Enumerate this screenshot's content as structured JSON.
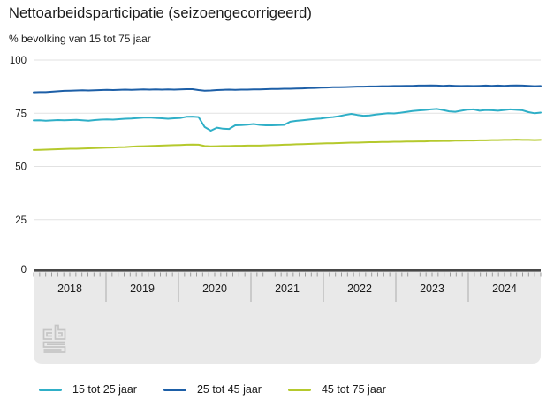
{
  "header": {
    "title": "Nettoarbeidsparticipatie (seizoengecorrigeerd)",
    "subtitle": "% bevolking van 15 tot 75 jaar"
  },
  "chart_data": {
    "type": "line",
    "title": "Nettoarbeidsparticipatie (seizoengecorrigeerd)",
    "ylabel": "% bevolking van 15 tot 75 jaar",
    "ylim": [
      0,
      100
    ],
    "yticks": [
      100,
      75,
      50,
      25,
      0
    ],
    "grid": true,
    "legend_position": "bottom",
    "x_resolution": "monthly",
    "year_labels": [
      "2018",
      "2019",
      "2020",
      "2021",
      "2022",
      "2023",
      "2024"
    ],
    "series": [
      {
        "name": "15 tot 25 jaar",
        "color": "#2fafc7",
        "values": [
          71.6,
          71.7,
          71.5,
          71.6,
          71.8,
          71.7,
          71.8,
          71.9,
          71.7,
          71.5,
          71.8,
          72.0,
          72.1,
          72.0,
          72.2,
          72.4,
          72.5,
          72.7,
          72.9,
          73.0,
          72.8,
          72.6,
          72.4,
          72.6,
          72.8,
          73.3,
          73.4,
          73.2,
          68.5,
          66.8,
          68.2,
          67.7,
          67.6,
          69.3,
          69.4,
          69.6,
          69.9,
          69.5,
          69.3,
          69.3,
          69.4,
          69.5,
          71.0,
          71.4,
          71.7,
          72.0,
          72.3,
          72.5,
          72.9,
          73.2,
          73.6,
          74.2,
          74.7,
          74.2,
          73.8,
          74.0,
          74.4,
          74.7,
          75.0,
          74.9,
          75.2,
          75.6,
          76.0,
          76.3,
          76.5,
          76.8,
          77.0,
          76.5,
          75.9,
          75.7,
          76.2,
          76.7,
          76.8,
          76.2,
          76.5,
          76.4,
          76.2,
          76.5,
          76.8,
          76.6,
          76.4,
          75.5,
          75.0,
          75.3
        ]
      },
      {
        "name": "25 tot 45 jaar",
        "color": "#1d5fa7",
        "values": [
          84.8,
          84.9,
          84.9,
          85.1,
          85.3,
          85.5,
          85.6,
          85.7,
          85.8,
          85.7,
          85.8,
          85.9,
          86.0,
          85.9,
          86.0,
          86.1,
          86.0,
          86.1,
          86.2,
          86.1,
          86.2,
          86.1,
          86.2,
          86.1,
          86.2,
          86.3,
          86.3,
          85.9,
          85.6,
          85.7,
          85.9,
          86.0,
          86.1,
          86.0,
          86.1,
          86.1,
          86.2,
          86.2,
          86.3,
          86.4,
          86.4,
          86.5,
          86.5,
          86.6,
          86.7,
          86.8,
          86.9,
          87.0,
          87.1,
          87.2,
          87.2,
          87.3,
          87.4,
          87.5,
          87.5,
          87.6,
          87.6,
          87.7,
          87.7,
          87.8,
          87.8,
          87.9,
          87.9,
          88.0,
          88.0,
          88.1,
          88.0,
          87.9,
          88.0,
          87.9,
          87.8,
          87.9,
          87.8,
          87.9,
          88.0,
          87.9,
          88.0,
          87.9,
          88.0,
          88.1,
          88.0,
          87.9,
          87.7,
          87.8
        ]
      },
      {
        "name": "45 tot 75 jaar",
        "color": "#b5c92d",
        "values": [
          57.7,
          57.8,
          57.9,
          58.0,
          58.1,
          58.2,
          58.3,
          58.3,
          58.4,
          58.5,
          58.6,
          58.7,
          58.8,
          58.9,
          59.0,
          59.1,
          59.3,
          59.4,
          59.5,
          59.6,
          59.7,
          59.8,
          59.9,
          60.0,
          60.1,
          60.2,
          60.3,
          60.2,
          59.6,
          59.4,
          59.5,
          59.6,
          59.6,
          59.7,
          59.7,
          59.8,
          59.8,
          59.8,
          59.9,
          60.0,
          60.1,
          60.2,
          60.3,
          60.4,
          60.5,
          60.6,
          60.7,
          60.8,
          60.9,
          60.9,
          61.0,
          61.1,
          61.2,
          61.2,
          61.3,
          61.4,
          61.4,
          61.5,
          61.5,
          61.6,
          61.6,
          61.7,
          61.7,
          61.8,
          61.8,
          61.9,
          61.9,
          62.0,
          62.0,
          62.1,
          62.1,
          62.2,
          62.2,
          62.3,
          62.3,
          62.4,
          62.4,
          62.5,
          62.5,
          62.6,
          62.5,
          62.5,
          62.4,
          62.5
        ]
      }
    ]
  },
  "branding": {
    "logo": "cbs"
  },
  "colors": {
    "grid": "#e2e2e2",
    "axis_band": "#e9e9e9",
    "axis_edge": "#484848",
    "tick": "#9c9c9c",
    "separator": "#b5b5b5",
    "text": "#1a1a1a",
    "logo": "#c5c5c5"
  }
}
